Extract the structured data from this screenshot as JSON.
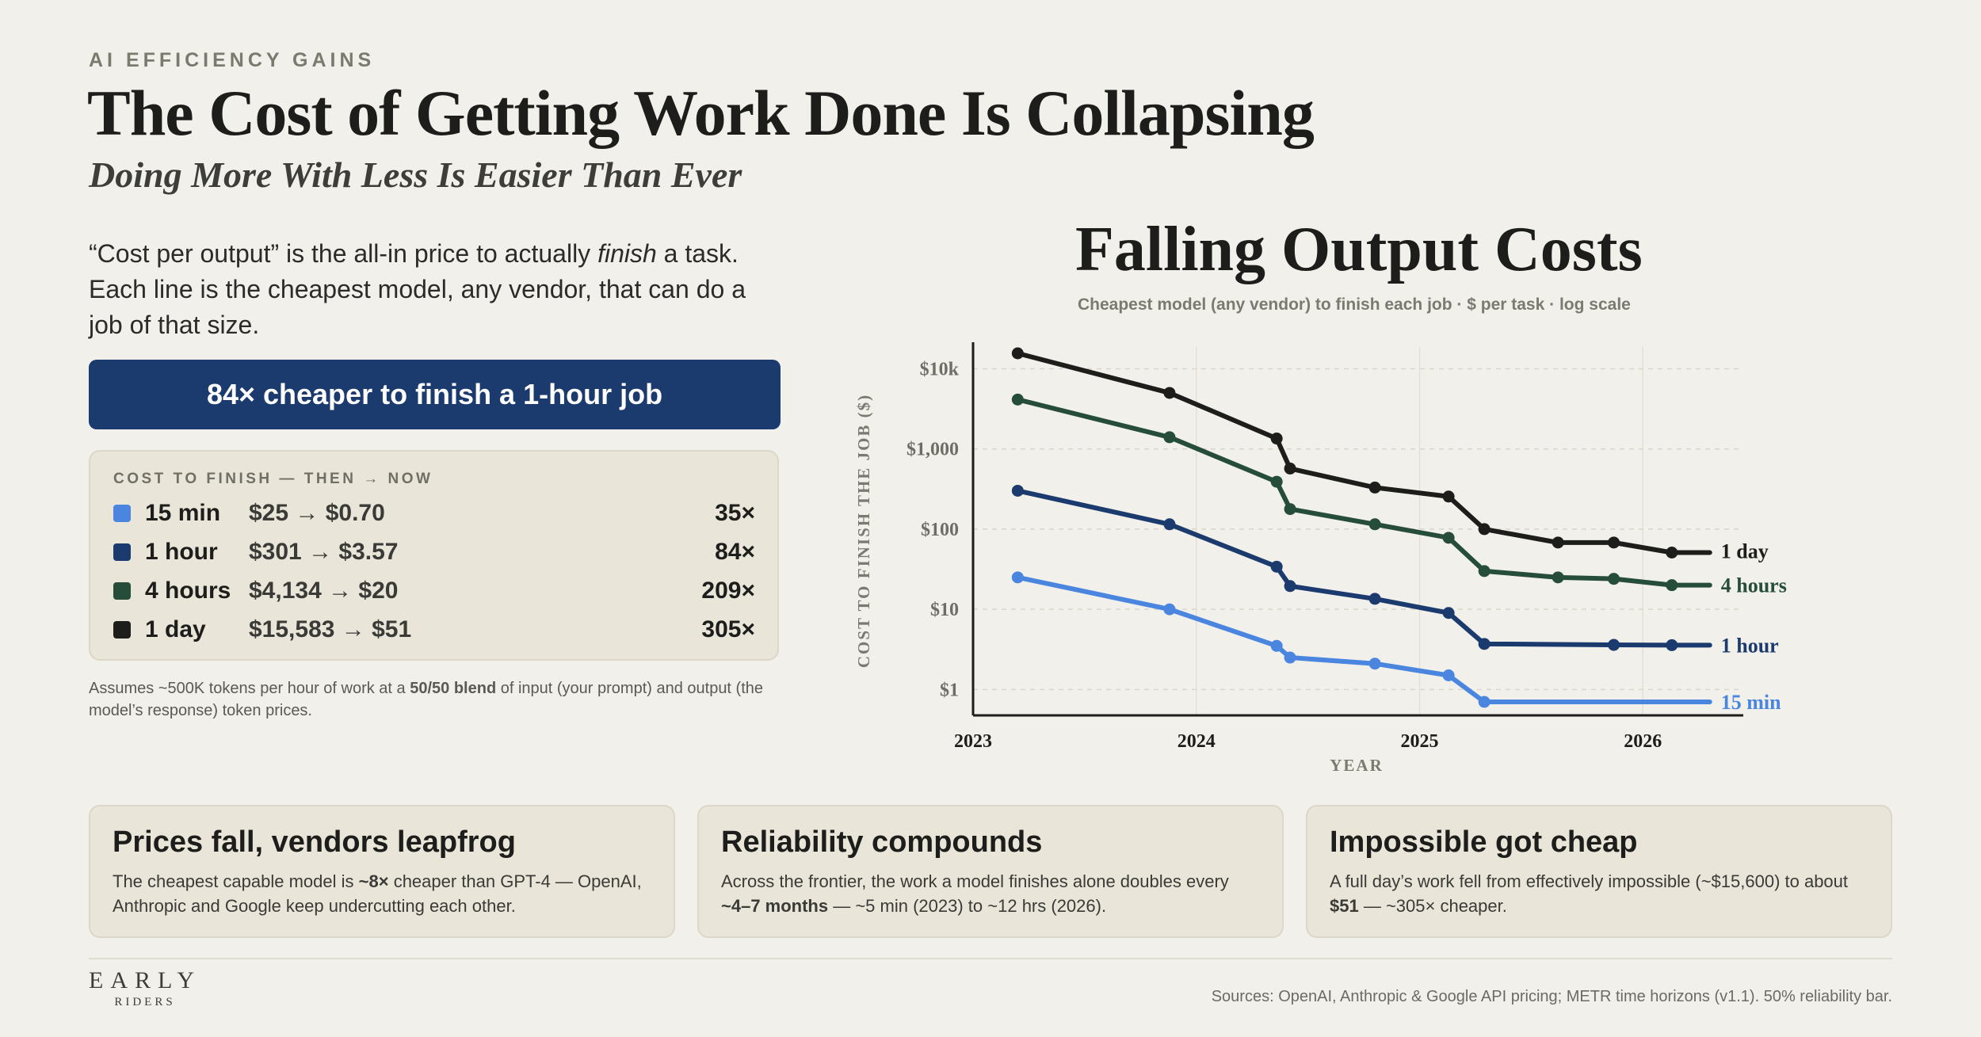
{
  "header": {
    "eyebrow": "AI EFFICIENCY GAINS",
    "title": "The Cost of Getting Work Done Is Collapsing",
    "subtitle": "Doing More With Less Is Easier Than Ever"
  },
  "intro": {
    "part1": "“Cost per output” is the all-in price to actually ",
    "emphasis": "finish",
    "part2": " a task. Each line is the cheapest model, any vendor, that can do a job of that size."
  },
  "banner": {
    "text": "84× cheaper to finish a 1-hour job"
  },
  "cost_box": {
    "label": "COST TO FINISH — THEN → NOW",
    "rows": [
      {
        "size": "15 min",
        "range": "$25 → $0.70",
        "multiplier": "35×",
        "color": "#4a86df"
      },
      {
        "size": "1 hour",
        "range": "$301 → $3.57",
        "multiplier": "84×",
        "color": "#1b3a6e"
      },
      {
        "size": "4 hours",
        "range": "$4,134 → $20",
        "multiplier": "209×",
        "color": "#264d3a"
      },
      {
        "size": "1 day",
        "range": "$15,583 → $51",
        "multiplier": "305×",
        "color": "#1d1d1b"
      }
    ]
  },
  "footnote": {
    "part1": "Assumes ~500K tokens per hour of work at a ",
    "bold": "50/50 blend",
    "part2": " of input (your prompt) and output (the model’s response) token prices."
  },
  "chart_data": {
    "type": "line",
    "title": "Falling Output Costs",
    "subtitle": "Cheapest model (any vendor) to finish each job · $ per task · log scale",
    "xlabel": "YEAR",
    "ylabel": "COST TO FINISH THE JOB ($)",
    "yscale": "log",
    "xlim": [
      2023.0,
      2026.45
    ],
    "ylim": [
      0.7,
      15583
    ],
    "xticks": [
      2023,
      2024,
      2025,
      2026
    ],
    "xtick_labels": [
      "2023",
      "2024",
      "2025",
      "2026"
    ],
    "yticks": [
      1,
      10,
      100,
      1000,
      10000
    ],
    "ytick_labels": [
      "$1",
      "$10",
      "$100",
      "$1,000",
      "$10k"
    ],
    "grid": true,
    "series": [
      {
        "name": "1 day",
        "color": "#1d1d1b",
        "x": [
          2023.2,
          2023.88,
          2024.36,
          2024.42,
          2024.8,
          2025.13,
          2025.29,
          2025.62,
          2025.87,
          2026.13,
          2026.3
        ],
        "y": [
          15583,
          5000,
          1350,
          570,
          330,
          255,
          100,
          68,
          68,
          51,
          51
        ]
      },
      {
        "name": "4 hours",
        "color": "#264d3a",
        "x": [
          2023.2,
          2023.88,
          2024.36,
          2024.42,
          2024.8,
          2025.13,
          2025.29,
          2025.62,
          2025.87,
          2026.13,
          2026.3
        ],
        "y": [
          4134,
          1400,
          390,
          178,
          115,
          78,
          30,
          25,
          24,
          20,
          20
        ]
      },
      {
        "name": "1 hour",
        "color": "#1b3a6e",
        "x": [
          2023.2,
          2023.88,
          2024.36,
          2024.42,
          2024.8,
          2025.13,
          2025.29,
          2025.87,
          2026.13,
          2026.3
        ],
        "y": [
          301,
          115,
          34,
          19.5,
          13.5,
          9,
          3.7,
          3.6,
          3.57,
          3.57
        ]
      },
      {
        "name": "15 min",
        "color": "#4a86df",
        "x": [
          2023.2,
          2023.88,
          2024.36,
          2024.42,
          2024.8,
          2025.13,
          2025.29,
          2026.3
        ],
        "y": [
          25,
          10,
          3.5,
          2.5,
          2.1,
          1.5,
          0.7,
          0.7
        ]
      }
    ]
  },
  "cards": [
    {
      "title": "Prices fall, vendors leapfrog",
      "part1": "The cheapest capable model is ",
      "bold": "~8×",
      "part2": " cheaper than GPT-4 — OpenAI, Anthropic and Google keep undercutting each other."
    },
    {
      "title": "Reliability compounds",
      "part1": "Across the frontier, the work a model finishes alone doubles every ",
      "bold": "~4–7 months",
      "part2": " — ~5 min (2023) to ~12 hrs (2026)."
    },
    {
      "title": "Impossible got cheap",
      "part1": "A full day’s work fell from effectively impossible (~$15,600) to about ",
      "bold": "$51",
      "part2": " — ~305× cheaper."
    }
  ],
  "footer": {
    "logo_top": "EARLY",
    "logo_bottom": "RIDERS",
    "sources": "Sources: OpenAI, Anthropic & Google API pricing; METR time horizons (v1.1). 50% reliability bar."
  }
}
